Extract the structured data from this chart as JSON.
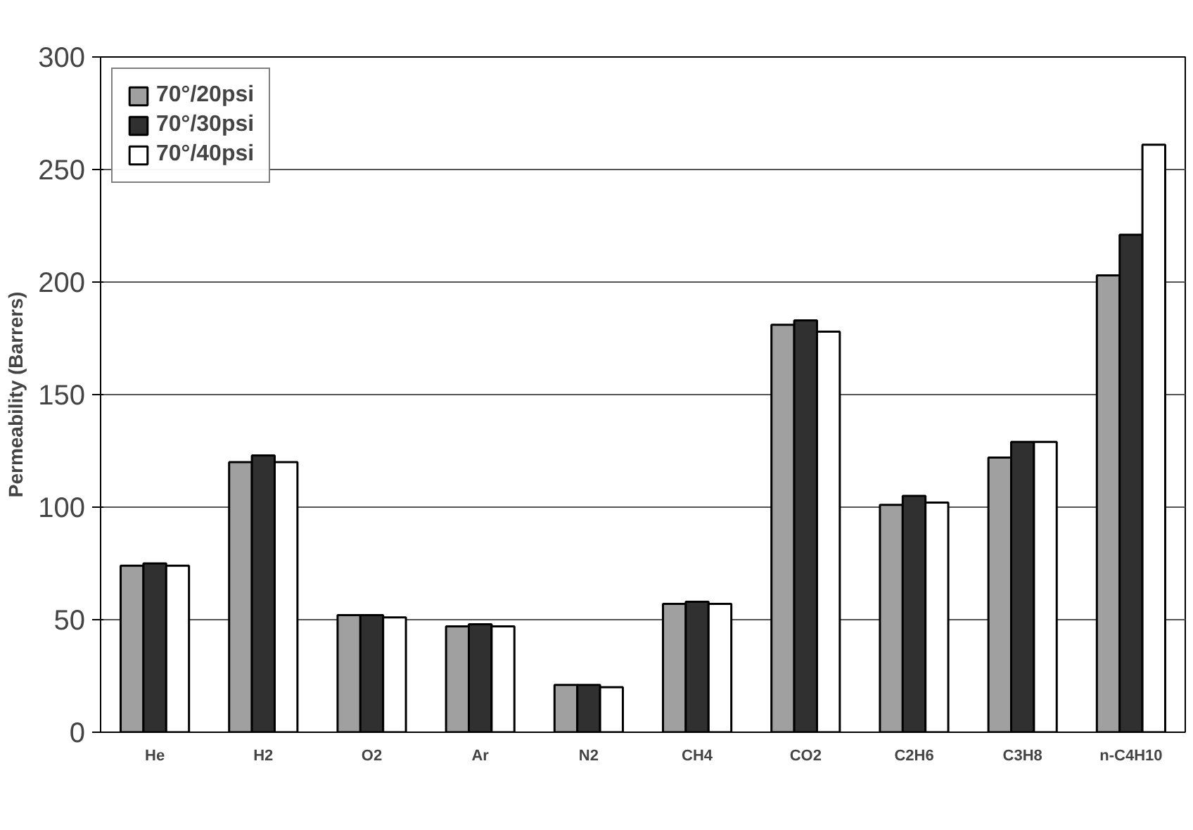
{
  "chart_data": {
    "type": "bar",
    "ylabel": "Permeability (Barrers)",
    "categories": [
      "He",
      "H2",
      "O2",
      "Ar",
      "N2",
      "CH4",
      "CO2",
      "C2H6",
      "C3H8",
      "n-C4H10"
    ],
    "series": [
      {
        "name": "70°/20psi",
        "color": "#a0a0a0",
        "values": [
          74,
          120,
          52,
          47,
          21,
          57,
          181,
          101,
          122,
          203
        ]
      },
      {
        "name": "70°/30psi",
        "color": "#303030",
        "values": [
          75,
          123,
          52,
          48,
          21,
          58,
          183,
          105,
          129,
          221
        ]
      },
      {
        "name": "70°/40psi",
        "color": "#ffffff",
        "values": [
          74,
          120,
          51,
          47,
          20,
          57,
          178,
          102,
          129,
          261
        ]
      }
    ],
    "ylim": [
      0,
      300
    ],
    "yticks": [
      0,
      50,
      100,
      150,
      200,
      250,
      300
    ],
    "grid": "y",
    "legend": "top left"
  }
}
